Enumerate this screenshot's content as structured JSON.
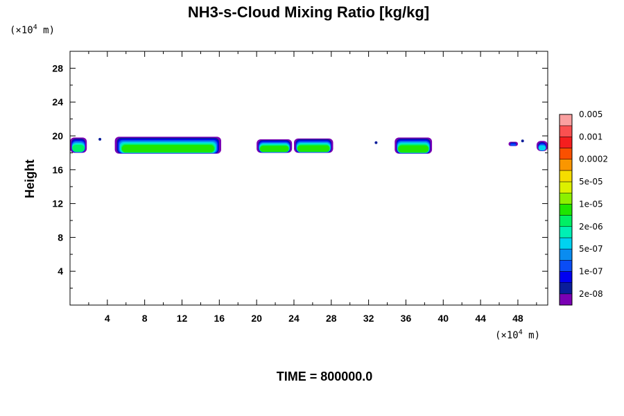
{
  "chart_data": {
    "type": "heatmap",
    "title": "NH3-s-Cloud Mixing Ratio [kg/kg]",
    "ylabel": "Height",
    "y_unit_prefix": "(×10",
    "y_unit_exp": "4",
    "y_unit_suffix": " m)",
    "x_unit_prefix": "(×10",
    "x_unit_exp": "4",
    "x_unit_suffix": " m)",
    "footer": "TIME = 800000.0",
    "xlim": [
      0,
      51.2
    ],
    "ylim": [
      0,
      30
    ],
    "x_ticks": [
      4,
      8,
      12,
      16,
      20,
      24,
      28,
      32,
      36,
      40,
      44,
      48
    ],
    "y_ticks": [
      4,
      8,
      12,
      16,
      20,
      24,
      28
    ],
    "colorbar": {
      "levels": [
        "2e-08",
        "1e-07",
        "5e-07",
        "2e-06",
        "1e-05",
        "5e-05",
        "0.0002",
        "0.001",
        "0.005"
      ],
      "colors": [
        "#7a00b4",
        "#0a1d9a",
        "#0000f0",
        "#0a4cf5",
        "#0a8cf0",
        "#00d2f0",
        "#00f0b4",
        "#00f064",
        "#1ee600",
        "#8cf000",
        "#dcf000",
        "#f5dc00",
        "#fa9600",
        "#fa5000",
        "#f51e1e",
        "#fa5050",
        "#faa0a0"
      ]
    },
    "clouds": [
      {
        "x0": 0.0,
        "x1": 1.8,
        "ybot": 18.0,
        "ytop": 19.8,
        "max_level": 7
      },
      {
        "x0": 4.8,
        "x1": 16.2,
        "ybot": 17.9,
        "ytop": 19.9,
        "max_level": 8
      },
      {
        "x0": 20.0,
        "x1": 23.8,
        "ybot": 18.0,
        "ytop": 19.6,
        "max_level": 8
      },
      {
        "x0": 24.0,
        "x1": 28.2,
        "ybot": 18.0,
        "ytop": 19.7,
        "max_level": 8
      },
      {
        "x0": 34.8,
        "x1": 38.8,
        "ybot": 17.9,
        "ytop": 19.8,
        "max_level": 8
      },
      {
        "x0": 47.0,
        "x1": 48.0,
        "ybot": 18.8,
        "ytop": 19.3,
        "max_level": 3
      },
      {
        "x0": 50.0,
        "x1": 51.2,
        "ybot": 18.2,
        "ytop": 19.4,
        "max_level": 5
      }
    ],
    "specks": [
      {
        "x": 3.2,
        "y": 19.6
      },
      {
        "x": 32.8,
        "y": 19.2
      },
      {
        "x": 48.5,
        "y": 19.4
      }
    ]
  }
}
